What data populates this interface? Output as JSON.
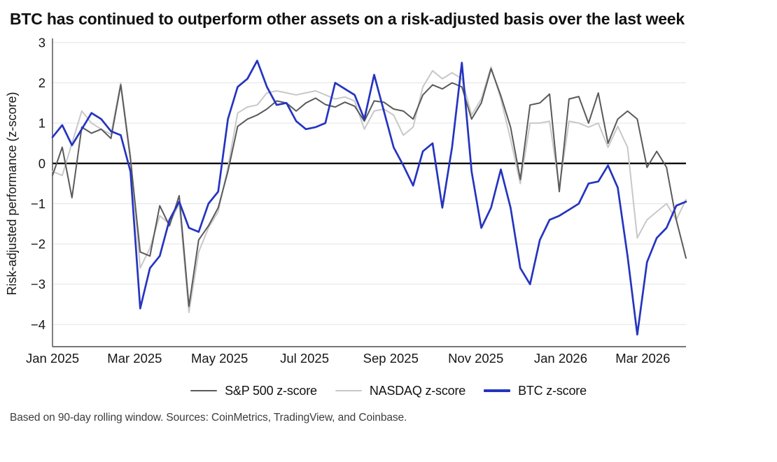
{
  "page": {
    "title": "BTC has continued to outperform other assets on a risk-adjusted basis over the last week",
    "source_note": "Based on 90-day rolling window. Sources: CoinMetrics, TradingView, and Coinbase."
  },
  "chart_data": {
    "type": "line",
    "title": "BTC has continued to outperform other assets on a risk-adjusted basis over the last week",
    "xlabel": "",
    "ylabel": "Risk-adjusted performance (z-score)",
    "x_unit": "weeks since 2025-01-01 (weekly samples)",
    "xlim": [
      0,
      65
    ],
    "ylim": [
      -4.55,
      3.05
    ],
    "grid": true,
    "zero_line": 0,
    "legend_position": "bottom",
    "y_ticks": [
      3,
      2,
      1,
      0,
      -1,
      -2,
      -3,
      -4
    ],
    "x_ticks": [
      {
        "label": "Jan 2025",
        "week": 0
      },
      {
        "label": "Mar 2025",
        "week": 8.43
      },
      {
        "label": "May 2025",
        "week": 17.14
      },
      {
        "label": "Jul 2025",
        "week": 25.86
      },
      {
        "label": "Sep 2025",
        "week": 34.71
      },
      {
        "label": "Nov 2025",
        "week": 43.43
      },
      {
        "label": "Jan 2026",
        "week": 52.14
      },
      {
        "label": "Mar 2026",
        "week": 60.57
      }
    ],
    "draw_order": [
      1,
      0,
      2
    ],
    "series": [
      {
        "name": "S&P 500 z-score",
        "color": "#5a5a5a",
        "line_width": 2,
        "swatch_height": 2.5,
        "values": [
          -0.3,
          0.4,
          -0.85,
          0.9,
          0.75,
          0.85,
          0.62,
          1.95,
          0.1,
          -2.2,
          -2.3,
          -1.05,
          -1.55,
          -0.8,
          -3.55,
          -1.9,
          -1.55,
          -1.1,
          -0.2,
          0.92,
          1.1,
          1.2,
          1.35,
          1.55,
          1.5,
          1.3,
          1.5,
          1.62,
          1.46,
          1.4,
          1.52,
          1.42,
          1.05,
          1.55,
          1.52,
          1.35,
          1.3,
          1.1,
          1.7,
          1.95,
          1.85,
          2.0,
          1.9,
          1.1,
          1.5,
          2.35,
          1.68,
          0.9,
          -0.4,
          1.45,
          1.5,
          1.72,
          -0.7,
          1.6,
          1.66,
          1.0,
          1.75,
          0.5,
          1.1,
          1.3,
          1.1,
          -0.1,
          0.3,
          -0.1,
          -1.4,
          -2.35
        ]
      },
      {
        "name": "NASDAQ z-score",
        "color": "#c8c8c8",
        "line_width": 2,
        "swatch_height": 2.5,
        "values": [
          -0.2,
          -0.3,
          0.5,
          1.3,
          1.0,
          0.85,
          0.72,
          2.0,
          0.2,
          -2.6,
          -2.1,
          -1.3,
          -1.5,
          -1.0,
          -3.7,
          -2.2,
          -1.6,
          -1.2,
          -0.1,
          1.25,
          1.4,
          1.45,
          1.75,
          1.8,
          1.75,
          1.7,
          1.75,
          1.8,
          1.7,
          1.6,
          1.65,
          1.55,
          0.85,
          1.3,
          1.35,
          1.2,
          0.7,
          0.9,
          1.9,
          2.3,
          2.1,
          2.25,
          2.1,
          1.2,
          1.6,
          2.4,
          1.6,
          0.6,
          -0.5,
          1.0,
          1.0,
          1.05,
          -0.6,
          1.05,
          1.0,
          0.9,
          1.0,
          0.4,
          0.92,
          0.4,
          -1.85,
          -1.4,
          -1.2,
          -1.0,
          -1.4,
          -0.9
        ]
      },
      {
        "name": "BTC z-score",
        "color": "#2534c0",
        "line_width": 2.7,
        "swatch_height": 3.5,
        "values": [
          0.65,
          0.95,
          0.45,
          0.85,
          1.25,
          1.1,
          0.8,
          0.7,
          -0.2,
          -3.6,
          -2.6,
          -2.3,
          -1.4,
          -0.95,
          -1.6,
          -1.7,
          -1.0,
          -0.7,
          1.1,
          1.9,
          2.1,
          2.55,
          1.9,
          1.45,
          1.5,
          1.05,
          0.85,
          0.9,
          1.0,
          2.0,
          1.85,
          1.7,
          1.1,
          2.2,
          1.3,
          0.4,
          -0.05,
          -0.55,
          0.3,
          0.5,
          -1.1,
          0.4,
          2.5,
          -0.2,
          -1.6,
          -1.1,
          -0.15,
          -1.1,
          -2.6,
          -3.0,
          -1.9,
          -1.4,
          -1.3,
          -1.15,
          -1.0,
          -0.5,
          -0.45,
          -0.05,
          -0.6,
          -2.3,
          -4.25,
          -2.45,
          -1.85,
          -1.6,
          -1.05,
          -0.95
        ]
      }
    ],
    "style": {
      "grid_color": "#e3e3e3",
      "zero_line_color": "#000000",
      "axis_color": "#4a4a4a",
      "tick_label_color": "#161616"
    }
  }
}
